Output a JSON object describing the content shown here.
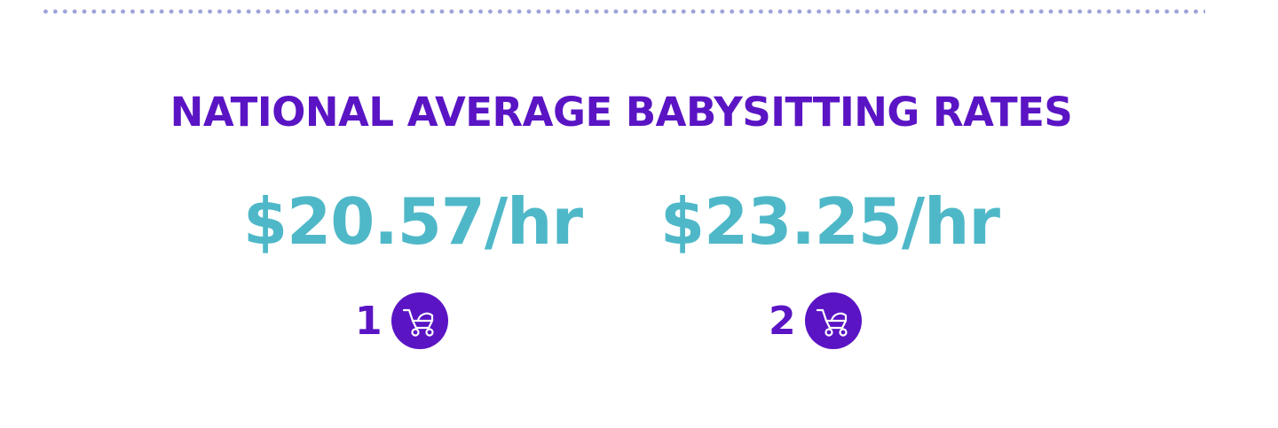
{
  "title": "NATIONAL AVERAGE BABYSITTING RATES",
  "rates": [
    {
      "amount": "$20.57/hr",
      "children": "1"
    },
    {
      "amount": "$23.25/hr",
      "children": "2"
    }
  ]
}
